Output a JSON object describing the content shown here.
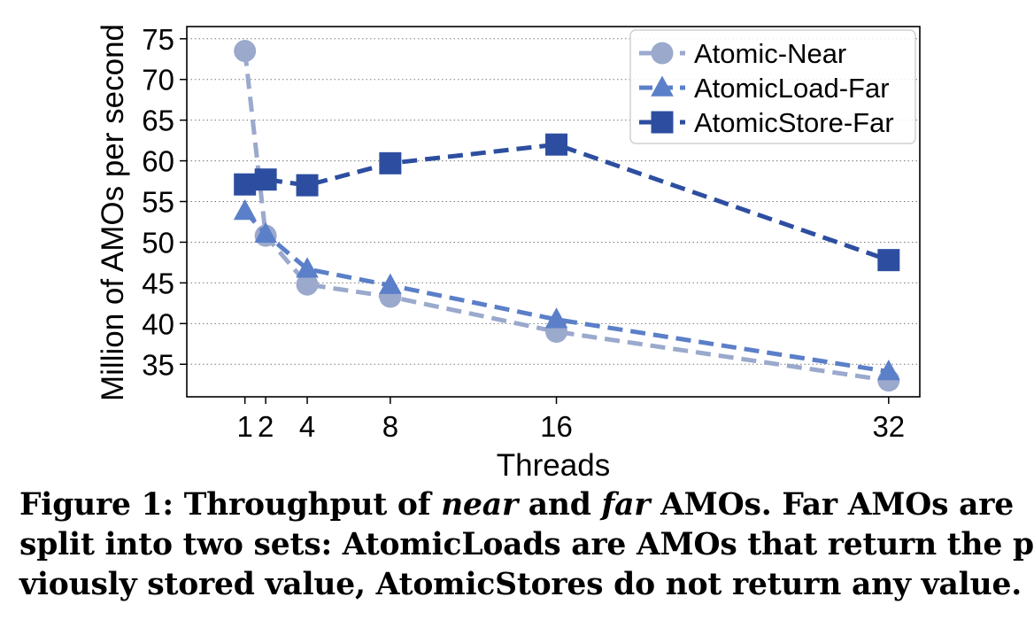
{
  "chart_data": {
    "type": "line",
    "title": "",
    "xlabel": "Threads",
    "ylabel": "Million of AMOs per second",
    "x": [
      1,
      2,
      4,
      8,
      16,
      32
    ],
    "xticks": [
      "1",
      "2",
      "4",
      "8",
      "16",
      "32"
    ],
    "xlim": [
      -1.8,
      33.5
    ],
    "ylim": [
      31,
      76.5
    ],
    "yticks": [
      35,
      40,
      45,
      50,
      55,
      60,
      65,
      70,
      75
    ],
    "grid": "horizontal-dotted",
    "legend_position": "top-right",
    "series": [
      {
        "name": "Atomic-Near",
        "marker": "circle",
        "color": "#9aa9cc",
        "values": [
          73.5,
          50.8,
          44.8,
          43.3,
          39.0,
          33.0
        ]
      },
      {
        "name": "AtomicLoad-Far",
        "marker": "triangle",
        "color": "#5b7fc8",
        "values": [
          53.8,
          51.0,
          46.7,
          44.7,
          40.5,
          34.1
        ]
      },
      {
        "name": "AtomicStore-Far",
        "marker": "square",
        "color": "#2d4ea0",
        "values": [
          57.1,
          57.7,
          57.0,
          59.7,
          62.0,
          47.8
        ]
      }
    ]
  },
  "caption": {
    "line1": {
      "a": "Figure 1: Throughput of ",
      "b": "near",
      "c": " and ",
      "d": "far",
      "e": " AMOs. Far AMOs are"
    },
    "line2": "split into two sets: AtomicLoads are AMOs that return the pre-",
    "line3": "viously stored value, AtomicStores do not return any value."
  }
}
